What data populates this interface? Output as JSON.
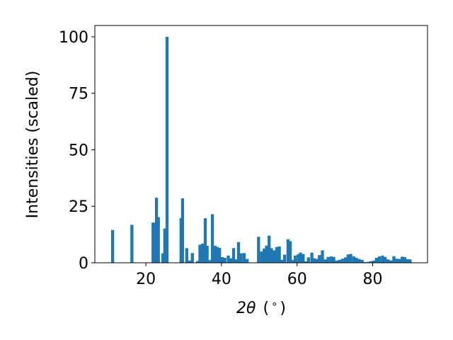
{
  "chart_data": {
    "type": "bar",
    "xlabel": "2θ (°)",
    "xlabel_parts": {
      "symbol": "2θ",
      "unit_open": "(",
      "unit_degree": "∘",
      "unit_close": ")"
    },
    "ylabel": "Intensities (scaled)",
    "xlim": [
      6.5,
      94.5
    ],
    "ylim": [
      0,
      105
    ],
    "xticks": [
      20,
      40,
      60,
      80
    ],
    "yticks": [
      0,
      25,
      50,
      75,
      100
    ],
    "bar_width": 0.8,
    "color": "#1f77b4",
    "grid": false,
    "legend": false,
    "x": [
      11.2,
      16.3,
      21.9,
      22.4,
      22.8,
      23.3,
      24.5,
      25.0,
      25.6,
      29.3,
      29.7,
      30.8,
      31.6,
      32.3,
      33.7,
      34.3,
      35.0,
      35.7,
      36.2,
      37.0,
      37.6,
      38.3,
      38.9,
      39.5,
      40.2,
      40.9,
      41.8,
      42.5,
      43.2,
      43.8,
      44.5,
      45.2,
      46.0,
      46.8,
      49.8,
      50.6,
      51.3,
      51.9,
      52.6,
      53.2,
      53.9,
      54.6,
      55.3,
      56.0,
      56.7,
      57.6,
      58.2,
      58.7,
      59.5,
      60.3,
      60.9,
      61.6,
      62.3,
      63.0,
      63.9,
      64.5,
      65.2,
      65.9,
      66.7,
      67.5,
      68.2,
      69.0,
      69.7,
      70.5,
      71.2,
      72.0,
      72.8,
      73.5,
      74.2,
      75.0,
      75.7,
      76.4,
      77.2,
      78.0,
      78.8,
      79.5,
      80.3,
      81.0,
      81.8,
      82.6,
      83.3,
      84.0,
      84.8,
      85.6,
      86.3,
      87.0,
      87.8,
      88.5,
      89.2,
      89.9
    ],
    "values": [
      14.5,
      16.8,
      17.8,
      17.5,
      28.8,
      20.2,
      4.2,
      15.2,
      100.0,
      19.8,
      28.5,
      6.5,
      1.0,
      4.3,
      0.8,
      8.0,
      8.5,
      19.7,
      7.5,
      1.2,
      21.5,
      7.5,
      7.0,
      6.6,
      2.5,
      2.2,
      3.2,
      2.0,
      6.5,
      1.5,
      9.2,
      4.2,
      4.3,
      1.7,
      11.5,
      5.0,
      6.3,
      7.6,
      12.0,
      6.5,
      5.5,
      7.0,
      7.2,
      1.3,
      3.6,
      10.4,
      9.6,
      1.2,
      3.2,
      3.8,
      4.5,
      3.9,
      0.6,
      2.4,
      4.5,
      2.0,
      1.7,
      3.4,
      5.5,
      1.5,
      2.6,
      2.8,
      2.6,
      1.0,
      1.3,
      1.8,
      2.4,
      3.7,
      3.9,
      2.8,
      2.2,
      1.7,
      1.3,
      0.3,
      0.4,
      0.7,
      1.0,
      2.2,
      2.8,
      3.2,
      2.6,
      1.5,
      1.1,
      2.9,
      1.8,
      1.7,
      2.7,
      2.5,
      1.6,
      1.5
    ]
  }
}
